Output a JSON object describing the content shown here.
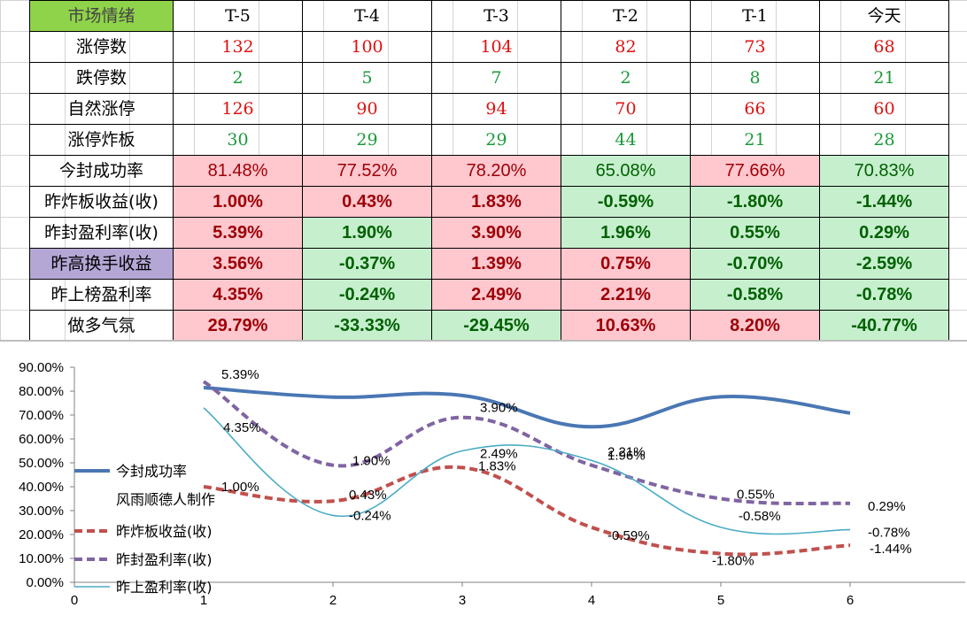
{
  "table": {
    "header": [
      "市场情绪",
      "T-5",
      "T-4",
      "T-3",
      "T-2",
      "T-1",
      "今天"
    ],
    "rows": [
      {
        "label": "涨停数",
        "values": [
          "132",
          "100",
          "104",
          "82",
          "73",
          "68"
        ]
      },
      {
        "label": "跌停数",
        "values": [
          "2",
          "5",
          "7",
          "2",
          "8",
          "21"
        ]
      },
      {
        "label": "自然涨停",
        "values": [
          "126",
          "90",
          "94",
          "70",
          "66",
          "60"
        ]
      },
      {
        "label": "涨停炸板",
        "values": [
          "30",
          "29",
          "29",
          "44",
          "21",
          "28"
        ]
      },
      {
        "label": "今封成功率",
        "values": [
          "81.48%",
          "77.52%",
          "78.20%",
          "65.08%",
          "77.66%",
          "70.83%"
        ]
      },
      {
        "label": "昨炸板收益(收)",
        "values": [
          "1.00%",
          "0.43%",
          "1.83%",
          "-0.59%",
          "-1.80%",
          "-1.44%"
        ]
      },
      {
        "label": "昨封盈利率(收)",
        "values": [
          "5.39%",
          "1.90%",
          "3.90%",
          "1.96%",
          "0.55%",
          "0.29%"
        ]
      },
      {
        "label": "昨高换手收益",
        "values": [
          "3.56%",
          "-0.37%",
          "1.39%",
          "0.75%",
          "-0.70%",
          "-2.59%"
        ]
      },
      {
        "label": "昨上榜盈利率",
        "values": [
          "4.35%",
          "-0.24%",
          "2.49%",
          "2.21%",
          "-0.58%",
          "-0.78%"
        ]
      },
      {
        "label": "做多气氛",
        "values": [
          "29.79%",
          "-33.33%",
          "-29.45%",
          "10.63%",
          "8.20%",
          "-40.77%"
        ]
      }
    ]
  },
  "watermark": "风雨顺德人",
  "colors": {
    "header_green": "#8fd34a",
    "pink": "#ffc7ce",
    "light_green": "#c6efce",
    "lavender": "#b4a7d6",
    "count_red": "#e01010",
    "count_green": "#1a9a3a",
    "pct_darkred": "#9c0006",
    "pct_darkgreen": "#006100"
  },
  "chart_data": {
    "type": "line",
    "x": [
      1,
      2,
      3,
      4,
      5,
      6
    ],
    "xlim": [
      0,
      7
    ],
    "x_ticks": [
      "0",
      "1",
      "2",
      "3",
      "4",
      "5",
      "6"
    ],
    "ylim": [
      0,
      90
    ],
    "y_ticks": [
      "0.00%",
      "10.00%",
      "20.00%",
      "30.00%",
      "40.00%",
      "50.00%",
      "60.00%",
      "70.00%",
      "80.00%",
      "90.00%"
    ],
    "legend_position": "left",
    "legend_note": "风雨顺德人制作",
    "series": [
      {
        "name": "今封成功率",
        "color": "#4a77b4",
        "style": "solid-thick",
        "values": [
          81.48,
          77.52,
          78.2,
          65.08,
          77.66,
          70.83
        ],
        "labels": []
      },
      {
        "name": "昨炸板收益(收)",
        "color": "#c0504d",
        "style": "dashed",
        "values": [
          40,
          34,
          48,
          23,
          12,
          15.5
        ],
        "labels": [
          "1.00%",
          "0.43%",
          "1.83%",
          "-0.59%",
          "-1.80%",
          "-1.44%"
        ]
      },
      {
        "name": "昨封盈利率(收)",
        "color": "#8064a2",
        "style": "dashed",
        "values": [
          84,
          49,
          69,
          49,
          35,
          33
        ],
        "labels": [
          "5.39%",
          "1.90%",
          "3.90%",
          "1.96%",
          "0.55%",
          "0.29%"
        ]
      },
      {
        "name": "昨上盈利率(收)",
        "color": "#4bacc6",
        "style": "solid-thin",
        "values": [
          73,
          28,
          55,
          51,
          23,
          22
        ],
        "labels": [
          "4.35%",
          "-0.24%",
          "2.49%",
          "2.21%",
          "-0.58%",
          "-0.78%"
        ]
      }
    ]
  }
}
